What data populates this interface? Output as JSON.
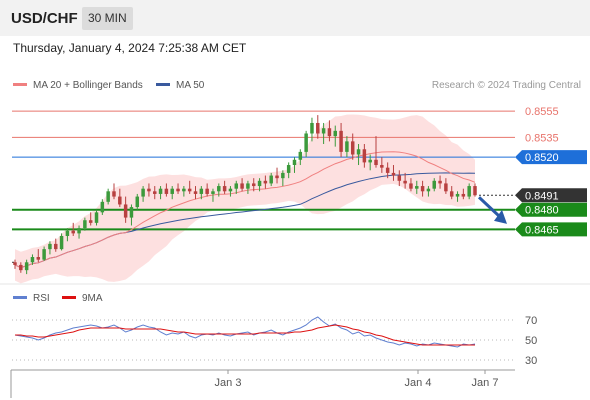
{
  "header": {
    "symbol": "USD/CHF",
    "timeframe": "30 MIN",
    "datetime": "Thursday, January 4, 2024 7:25:38 AM CET"
  },
  "legend": {
    "ma20_label": "MA 20 + Bollinger Bands",
    "ma50_label": "MA 50",
    "research": "Research © 2024 Trading Central",
    "rsi_label": "RSI",
    "rsi_ma_label": "9MA"
  },
  "colors": {
    "ma20": "#f08080",
    "ma50": "#3a5a9e",
    "band_fill": "#fde0e0",
    "resistance": "#e8746c",
    "pivot": "#1e6fd9",
    "support": "#1a8a1a",
    "current": "#333333",
    "candle_up": "#3c9a3c",
    "candle_down": "#b84040",
    "arrow": "#2a5aa8",
    "rsi": "#6080d0",
    "rsi_ma": "#dd1111"
  },
  "chart_data": {
    "type": "candlestick",
    "x_labels": [
      "Jan 3",
      "Jan 4",
      "Jan 7"
    ],
    "y_range": [
      0.8425,
      0.8565
    ],
    "levels": [
      {
        "label": "0.8555",
        "value": 0.8555,
        "kind": "resistance"
      },
      {
        "label": "0.8535",
        "value": 0.8535,
        "kind": "resistance"
      },
      {
        "label": "0.8520",
        "value": 0.852,
        "kind": "pivot"
      },
      {
        "label": "0.8491",
        "value": 0.8491,
        "kind": "current"
      },
      {
        "label": "0.8480",
        "value": 0.848,
        "kind": "support"
      },
      {
        "label": "0.8465",
        "value": 0.8465,
        "kind": "support"
      }
    ],
    "candles": [
      [
        0.844,
        0.8442,
        0.8435,
        0.8438
      ],
      [
        0.8438,
        0.844,
        0.8432,
        0.8434
      ],
      [
        0.8434,
        0.8442,
        0.8431,
        0.844
      ],
      [
        0.844,
        0.8446,
        0.8438,
        0.8444
      ],
      [
        0.8444,
        0.845,
        0.844,
        0.8442
      ],
      [
        0.8442,
        0.8452,
        0.8441,
        0.845
      ],
      [
        0.845,
        0.8456,
        0.8446,
        0.8454
      ],
      [
        0.8454,
        0.8458,
        0.8448,
        0.845
      ],
      [
        0.845,
        0.8462,
        0.8449,
        0.846
      ],
      [
        0.846,
        0.8466,
        0.8456,
        0.8464
      ],
      [
        0.8464,
        0.847,
        0.846,
        0.8462
      ],
      [
        0.8462,
        0.8468,
        0.8458,
        0.8466
      ],
      [
        0.8466,
        0.8474,
        0.8464,
        0.8472
      ],
      [
        0.8472,
        0.8478,
        0.8468,
        0.847
      ],
      [
        0.847,
        0.848,
        0.8468,
        0.8478
      ],
      [
        0.8478,
        0.8488,
        0.8476,
        0.8486
      ],
      [
        0.8486,
        0.8496,
        0.8484,
        0.8494
      ],
      [
        0.8494,
        0.85,
        0.8488,
        0.849
      ],
      [
        0.849,
        0.8496,
        0.8482,
        0.8484
      ],
      [
        0.8484,
        0.849,
        0.847,
        0.8474
      ],
      [
        0.8474,
        0.8484,
        0.8468,
        0.8482
      ],
      [
        0.8482,
        0.8492,
        0.848,
        0.849
      ],
      [
        0.849,
        0.8498,
        0.8486,
        0.8496
      ],
      [
        0.8496,
        0.85,
        0.849,
        0.8494
      ],
      [
        0.8494,
        0.8498,
        0.8488,
        0.8492
      ],
      [
        0.8492,
        0.8498,
        0.8488,
        0.8496
      ],
      [
        0.8496,
        0.85,
        0.849,
        0.8492
      ],
      [
        0.8492,
        0.8498,
        0.8488,
        0.8496
      ],
      [
        0.8496,
        0.85,
        0.8492,
        0.8494
      ],
      [
        0.8494,
        0.8498,
        0.849,
        0.8496
      ],
      [
        0.8496,
        0.8502,
        0.8492,
        0.8494
      ],
      [
        0.8494,
        0.8498,
        0.8488,
        0.8492
      ],
      [
        0.8492,
        0.8498,
        0.8488,
        0.8496
      ],
      [
        0.8496,
        0.85,
        0.849,
        0.8492
      ],
      [
        0.8492,
        0.8496,
        0.8486,
        0.8494
      ],
      [
        0.8494,
        0.85,
        0.849,
        0.8498
      ],
      [
        0.8498,
        0.8502,
        0.8492,
        0.8494
      ],
      [
        0.8494,
        0.8498,
        0.849,
        0.8496
      ],
      [
        0.8496,
        0.8502,
        0.8492,
        0.85
      ],
      [
        0.85,
        0.8504,
        0.8494,
        0.8496
      ],
      [
        0.8496,
        0.8502,
        0.8492,
        0.85
      ],
      [
        0.85,
        0.8504,
        0.8494,
        0.8498
      ],
      [
        0.8498,
        0.8504,
        0.8494,
        0.8502
      ],
      [
        0.8502,
        0.8506,
        0.8496,
        0.85
      ],
      [
        0.85,
        0.8508,
        0.8498,
        0.8506
      ],
      [
        0.8506,
        0.8512,
        0.85,
        0.8504
      ],
      [
        0.8504,
        0.851,
        0.8498,
        0.8508
      ],
      [
        0.8508,
        0.8516,
        0.8504,
        0.8514
      ],
      [
        0.8514,
        0.852,
        0.8508,
        0.8518
      ],
      [
        0.8518,
        0.8526,
        0.8514,
        0.8524
      ],
      [
        0.8524,
        0.854,
        0.852,
        0.8538
      ],
      [
        0.8538,
        0.855,
        0.8532,
        0.8546
      ],
      [
        0.8546,
        0.8552,
        0.8534,
        0.8538
      ],
      [
        0.8538,
        0.8546,
        0.853,
        0.8542
      ],
      [
        0.8542,
        0.8548,
        0.8532,
        0.8536
      ],
      [
        0.8536,
        0.8544,
        0.8528,
        0.854
      ],
      [
        0.854,
        0.8546,
        0.852,
        0.8524
      ],
      [
        0.8524,
        0.8536,
        0.852,
        0.8532
      ],
      [
        0.8532,
        0.8538,
        0.8518,
        0.8522
      ],
      [
        0.8522,
        0.853,
        0.8514,
        0.8526
      ],
      [
        0.8526,
        0.853,
        0.8512,
        0.8516
      ],
      [
        0.8516,
        0.8522,
        0.851,
        0.8518
      ],
      [
        0.8518,
        0.8536,
        0.8512,
        0.8514
      ],
      [
        0.8514,
        0.852,
        0.8508,
        0.8512
      ],
      [
        0.8512,
        0.8516,
        0.8504,
        0.8508
      ],
      [
        0.8508,
        0.8514,
        0.8502,
        0.8506
      ],
      [
        0.8506,
        0.851,
        0.8498,
        0.8502
      ],
      [
        0.8502,
        0.8508,
        0.8496,
        0.85
      ],
      [
        0.85,
        0.8504,
        0.8494,
        0.8496
      ],
      [
        0.8496,
        0.8502,
        0.8492,
        0.8498
      ],
      [
        0.8498,
        0.8502,
        0.849,
        0.8494
      ],
      [
        0.8494,
        0.8498,
        0.849,
        0.8496
      ],
      [
        0.8496,
        0.8504,
        0.8494,
        0.8502
      ],
      [
        0.8502,
        0.8506,
        0.8496,
        0.85
      ],
      [
        0.85,
        0.8504,
        0.8492,
        0.8494
      ],
      [
        0.8494,
        0.8498,
        0.8488,
        0.849
      ],
      [
        0.849,
        0.8494,
        0.8486,
        0.8492
      ],
      [
        0.8492,
        0.8496,
        0.8488,
        0.849
      ],
      [
        0.849,
        0.85,
        0.8488,
        0.8498
      ],
      [
        0.8498,
        0.85,
        0.849,
        0.8491
      ]
    ],
    "rsi_ticks": [
      70,
      50,
      30
    ],
    "rsi_range": [
      20,
      80
    ],
    "rsi": [
      55,
      54,
      53,
      52,
      50,
      52,
      55,
      57,
      58,
      60,
      62,
      63,
      64,
      65,
      64,
      62,
      63,
      65,
      62,
      58,
      60,
      63,
      65,
      63,
      62,
      58,
      55,
      57,
      56,
      58,
      54,
      52,
      55,
      56,
      55,
      57,
      55,
      54,
      56,
      57,
      58,
      55,
      57,
      58,
      60,
      57,
      55,
      58,
      60,
      62,
      65,
      70,
      73,
      68,
      64,
      66,
      62,
      60,
      56,
      58,
      54,
      55,
      52,
      50,
      48,
      47,
      45,
      47,
      46,
      44,
      46,
      45,
      47,
      46,
      45,
      44,
      43,
      46,
      45,
      46
    ],
    "rsi_ma": [
      55,
      55,
      54,
      54,
      53,
      53,
      54,
      55,
      56,
      57,
      58,
      60,
      61,
      62,
      62,
      62,
      62,
      62,
      62,
      61,
      61,
      61,
      61,
      61,
      61,
      61,
      60,
      59,
      58,
      58,
      57,
      56,
      56,
      56,
      56,
      56,
      56,
      56,
      56,
      56,
      56,
      56,
      57,
      57,
      57,
      57,
      57,
      57,
      58,
      58,
      59,
      60,
      62,
      63,
      64,
      65,
      64,
      63,
      61,
      60,
      58,
      57,
      55,
      54,
      52,
      50,
      49,
      48,
      47,
      46,
      45,
      45,
      45,
      45,
      45,
      45,
      45,
      45,
      45,
      45
    ]
  }
}
